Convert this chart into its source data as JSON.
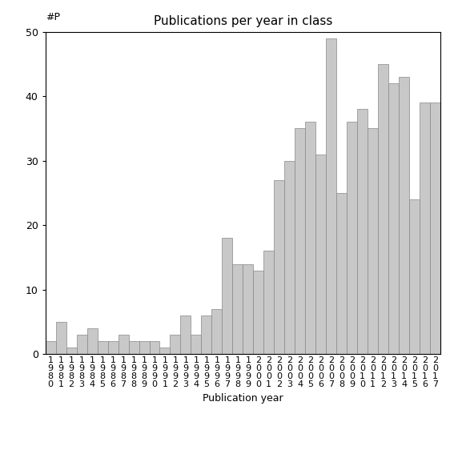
{
  "title": "Publications per year in class",
  "xlabel": "Publication year",
  "ylabel_text": "#P",
  "years": [
    1980,
    1981,
    1982,
    1983,
    1984,
    1985,
    1986,
    1987,
    1988,
    1989,
    1990,
    1991,
    1992,
    1993,
    1994,
    1995,
    1996,
    1997,
    1998,
    1999,
    2000,
    2001,
    2002,
    2003,
    2004,
    2005,
    2006,
    2007,
    2008,
    2009,
    2010,
    2011,
    2012,
    2013,
    2014,
    2015,
    2016,
    2017
  ],
  "values": [
    2,
    5,
    1,
    3,
    4,
    2,
    2,
    3,
    2,
    2,
    2,
    1,
    3,
    6,
    3,
    6,
    7,
    18,
    14,
    14,
    13,
    16,
    27,
    30,
    35,
    36,
    31,
    49,
    25,
    36,
    38,
    35,
    45,
    42,
    43,
    24,
    39,
    39
  ],
  "bar_color": "#c8c8c8",
  "bar_edgecolor": "#888888",
  "ylim": [
    0,
    50
  ],
  "yticks": [
    0,
    10,
    20,
    30,
    40,
    50
  ],
  "title_fontsize": 11,
  "xlabel_fontsize": 9,
  "tick_fontsize": 9,
  "ylabel_fontsize": 9
}
